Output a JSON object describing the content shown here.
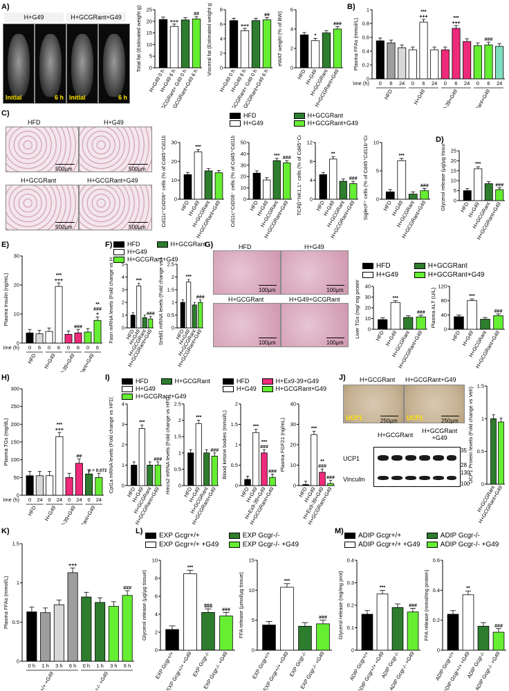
{
  "colors": {
    "black": "#000000",
    "white": "#ffffff",
    "dkgreen": "#2e7d2e",
    "ltgreen": "#66ee33",
    "pink": "#ee2a7b",
    "grey1": "#9e9e9e",
    "grey2": "#d8d8d8",
    "teal": "#7ee0c0"
  },
  "panel_labels": {
    "A": "A)",
    "B": "B)",
    "C": "C)",
    "D": "D)",
    "E": "E)",
    "F": "F)",
    "G": "G)",
    "H": "H)",
    "I": "I)",
    "J": "J)",
    "K": "K)",
    "L": "L)",
    "M": "M)"
  },
  "images": {
    "A": {
      "h1": "H+G49",
      "h2": "H+GCGRant+G49",
      "t1": "Initial",
      "t2": "6 h",
      "t3": "Initial",
      "t4": "6 h"
    },
    "C": {
      "c1": "HFD",
      "c2": "H+G49",
      "c3": "H+GCGRant",
      "c4": "H+GCGRant+G49",
      "scale": "500µm"
    },
    "G": {
      "c1": "HFD",
      "c2": "H+G49",
      "c3": "H+GCGRant",
      "c4": "H+G49+GCGRant",
      "scale": "100µm"
    },
    "J": {
      "c1": "H+GCGRant",
      "c2": "H+GCGRant+G49",
      "ucp": "UCP1",
      "scale": "250µm",
      "blot_g1": "H+GCGRant",
      "blot_g2": "H+GCGRant\n+G49",
      "ucp1": "UCP1",
      "vinculin": "Vinculin",
      "mw": [
        "35",
        "28",
        "130",
        "100"
      ]
    }
  },
  "legends": {
    "C": [
      "HFD",
      "H+G49",
      "H+GCGRant",
      "H+GCGRant+G49"
    ],
    "F": [
      "HFD",
      "H+G49",
      "H+GCGRant",
      "H+GCGRant+G49"
    ],
    "G": [
      "HFD",
      "H+G49",
      "H+GCGRant",
      "H+GCGRant+G49"
    ],
    "H": [
      "HFD",
      "H+G49",
      "H+GCGRant",
      "H+GCGRant+G49"
    ],
    "I": [
      "HFD",
      "H+G49",
      "H+Ex9-39+G49",
      "H+GCGRant+G49"
    ],
    "L": [
      "EXP Gcgr+/+",
      "EXP Gcgr+/+ +G49",
      "EXP Gcgr-/-",
      "EXP Gcgr-/- +G49"
    ],
    "M": [
      "ADIP Gcgr+/+",
      "ADIP Gcgr+/+ +G49",
      "ADIP Gcgr-/-",
      "ADIP Gcgr-/- +G49"
    ]
  },
  "chart_data": [
    {
      "id": "A1",
      "type": "bar",
      "ylabel": "Total fat (Estimated weight g)",
      "ylim": [
        0,
        25
      ],
      "ticks": [
        0,
        5,
        10,
        15,
        20,
        25
      ],
      "categories": [
        "H+G49 0 h",
        "H+G49 6 h",
        "H+GCGRant+ G49 0 h",
        "H+GCGRant+G49 6 h"
      ],
      "values": [
        20.8,
        17.8,
        20.6,
        21.0
      ],
      "colors": [
        "black",
        "white",
        "dkgreen",
        "ltgreen"
      ],
      "sig": [
        "",
        "+++",
        "",
        "##"
      ]
    },
    {
      "id": "A2",
      "type": "bar",
      "ylabel": "Visceral fat (Estimated weight g)",
      "ylim": [
        0,
        8
      ],
      "ticks": [
        0,
        2,
        4,
        6,
        8
      ],
      "categories": [
        "H+G49 0 h",
        "H+G49 6 h",
        "H+GCGRant+ G49 0 h",
        "H+GCGRant+G49 6 h"
      ],
      "values": [
        6.5,
        5.1,
        6.5,
        6.6
      ],
      "colors": [
        "black",
        "white",
        "dkgreen",
        "ltgreen"
      ],
      "sig": [
        "",
        "+++",
        "",
        "##"
      ]
    },
    {
      "id": "A3",
      "type": "bar",
      "ylabel": "eWAT weight (% of BW)",
      "ylim": [
        0,
        6
      ],
      "ticks": [
        0,
        2,
        4,
        6
      ],
      "categories": [
        "HFD",
        "H+G49",
        "H+GCGRant",
        "H+GCGRant+G49"
      ],
      "values": [
        3.4,
        2.8,
        3.6,
        4.0
      ],
      "colors": [
        "black",
        "white",
        "dkgreen",
        "ltgreen"
      ],
      "sig": [
        "",
        "*",
        "",
        "###"
      ]
    },
    {
      "id": "B",
      "type": "bar",
      "ylabel": "Plasma FFAs (mmol/L)",
      "ylim": [
        0,
        1.0
      ],
      "ticks": [
        0.0,
        0.2,
        0.4,
        0.6,
        0.8,
        1.0
      ],
      "categories": [
        "0",
        "6",
        "24",
        "0",
        "6",
        "24",
        "0",
        "6",
        "24",
        "0",
        "6",
        "24"
      ],
      "groups": [
        "HFD",
        "H+G49",
        "H+Ex9-39+G49",
        "H+GCGRant+G49"
      ],
      "xlabel": "Time (h)",
      "values": [
        0.55,
        0.52,
        0.45,
        0.42,
        0.82,
        0.42,
        0.42,
        0.73,
        0.54,
        0.48,
        0.49,
        0.47
      ],
      "colors": [
        "black",
        "grey1",
        "grey2",
        "white",
        "white",
        "white",
        "pink",
        "pink",
        "pink",
        "ltgreen",
        "ltgreen",
        "teal"
      ],
      "sig": [
        "",
        "",
        "",
        "",
        "***\n+++",
        "",
        "",
        "***\n+++",
        "",
        "",
        "###",
        ""
      ]
    },
    {
      "id": "C1",
      "type": "bar",
      "ylabel": "Cd11c⁺Cd206⁺ cells (% of Cd45⁺Cd11b⁺F4/80⁺)",
      "ylim": [
        0,
        30
      ],
      "ticks": [
        0,
        10,
        20,
        30
      ],
      "categories": [
        "HFD",
        "H+G49",
        "H+GCGRant",
        "H+GCGRant+G49"
      ],
      "values": [
        13,
        25,
        15,
        14
      ],
      "colors": [
        "black",
        "white",
        "dkgreen",
        "ltgreen"
      ],
      "sig": [
        "",
        "***",
        "",
        ""
      ]
    },
    {
      "id": "C2",
      "type": "bar",
      "ylabel": "Cd11c⁺Cd206⁻ cells (% of Cd45⁺Cd11b⁺F4/80⁺)",
      "ylim": [
        0,
        50
      ],
      "ticks": [
        0,
        10,
        20,
        30,
        40,
        50
      ],
      "categories": [
        "HFD",
        "H+G49",
        "H+GCGRant",
        "H+GCGRant+G49"
      ],
      "values": [
        23,
        17,
        34,
        32
      ],
      "colors": [
        "black",
        "white",
        "dkgreen",
        "ltgreen"
      ],
      "sig": [
        "",
        "",
        "***",
        "###"
      ]
    },
    {
      "id": "C3",
      "type": "bar",
      "ylabel": "TCRβ⁺NK1.1⁺ cells (% of Cd45⁺Cd3⁺)",
      "ylim": [
        0,
        12
      ],
      "ticks": [
        0,
        4,
        8,
        12
      ],
      "categories": [
        "HFD",
        "H+G49",
        "H+GCGRant",
        "H+GCGRant+G49"
      ],
      "values": [
        5.2,
        8.5,
        3.8,
        3.3
      ],
      "colors": [
        "black",
        "white",
        "dkgreen",
        "ltgreen"
      ],
      "sig": [
        "",
        "**",
        "",
        "###"
      ]
    },
    {
      "id": "C4",
      "type": "bar",
      "ylabel": "SiglecF⁺ cells (% of Cd45⁺Cd11b⁺Cd11c⁻)",
      "ylim": [
        0,
        10
      ],
      "ticks": [
        0,
        5,
        10
      ],
      "categories": [
        "HFD",
        "H+G49",
        "H+GCGRant",
        "H+GCGRant+G49"
      ],
      "values": [
        1.3,
        6.8,
        0.9,
        1.5
      ],
      "colors": [
        "black",
        "white",
        "dkgreen",
        "ltgreen"
      ],
      "sig": [
        "",
        "***",
        "",
        "###"
      ]
    },
    {
      "id": "D",
      "type": "bar",
      "ylabel": "Glycerol release (µg/µg tissue)",
      "ylim": [
        0,
        25
      ],
      "ticks": [
        0,
        5,
        10,
        15,
        20,
        25
      ],
      "categories": [
        "HFD",
        "H+G49",
        "H+GCGRant",
        "H+GCGRant+G49"
      ],
      "values": [
        5,
        16,
        8.5,
        5.5
      ],
      "colors": [
        "black",
        "white",
        "dkgreen",
        "ltgreen"
      ],
      "sig": [
        "",
        "***",
        "",
        "###"
      ]
    },
    {
      "id": "E",
      "type": "bar",
      "ylabel": "Plasma Insulin (ng/mL)",
      "ylim": [
        0,
        30
      ],
      "ticks": [
        0,
        10,
        20,
        30
      ],
      "categories": [
        "0",
        "6",
        "0",
        "6",
        "0",
        "6",
        "0",
        "6"
      ],
      "groups": [
        "HFD",
        "H+G49",
        "H+Ex9-39+G49",
        "H+GCGRant+G49"
      ],
      "xlabel": "Time (h)",
      "values": [
        3.5,
        3.2,
        4.0,
        19.5,
        3.0,
        3.5,
        3.8,
        7.8
      ],
      "colors": [
        "black",
        "grey2",
        "white",
        "white",
        "pink",
        "pink",
        "ltgreen",
        "ltgreen"
      ],
      "sig": [
        "",
        "",
        "",
        "***\n+++",
        "",
        "###",
        "",
        "**\n###\n+"
      ]
    },
    {
      "id": "F1",
      "type": "bar",
      "ylabel": "Fasn mRNA levels (Fold change vs HFD)",
      "ylim": [
        0,
        5
      ],
      "ticks": [
        0,
        1,
        2,
        3,
        4,
        5
      ],
      "categories": [
        "HFD",
        "H+G49",
        "H+GCGRant",
        "H+GCGRant+G49"
      ],
      "values": [
        1.0,
        3.3,
        0.8,
        0.7
      ],
      "colors": [
        "black",
        "white",
        "dkgreen",
        "ltgreen"
      ],
      "sig": [
        "",
        "***",
        "",
        "###"
      ]
    },
    {
      "id": "F2",
      "type": "bar",
      "ylabel": "Srebf1 mRNA levels (Fold change vs HFD)",
      "ylim": [
        0,
        2.5
      ],
      "ticks": [
        0.0,
        0.5,
        1.0,
        1.5,
        2.0,
        2.5
      ],
      "categories": [
        "HFD",
        "H+G49",
        "H+GCGRant",
        "H+GCGRant+G49"
      ],
      "values": [
        1.0,
        1.8,
        0.9,
        1.0
      ],
      "colors": [
        "black",
        "white",
        "dkgreen",
        "ltgreen"
      ],
      "sig": [
        "",
        "***",
        "",
        "###"
      ]
    },
    {
      "id": "G1",
      "type": "bar",
      "ylabel": "Liver TGs (mg/ mg protein)",
      "ylim": [
        0,
        40
      ],
      "ticks": [
        0,
        10,
        20,
        30,
        40
      ],
      "categories": [
        "HFD",
        "H+G49",
        "H+GCGRant",
        "H+GCGRant+G49"
      ],
      "values": [
        9,
        25,
        11,
        11.5
      ],
      "colors": [
        "black",
        "white",
        "dkgreen",
        "ltgreen"
      ],
      "sig": [
        "",
        "***",
        "",
        "###"
      ]
    },
    {
      "id": "G2",
      "type": "bar",
      "ylabel": "Plasma ALT (U/L)",
      "ylim": [
        0,
        120
      ],
      "ticks": [
        0,
        40,
        80,
        120
      ],
      "categories": [
        "HFD",
        "H+G49",
        "H+GCGRant",
        "H+GCGRant+G49"
      ],
      "values": [
        35,
        80,
        28,
        38
      ],
      "colors": [
        "black",
        "white",
        "dkgreen",
        "ltgreen"
      ],
      "sig": [
        "",
        "***",
        "",
        "###"
      ]
    },
    {
      "id": "H",
      "type": "bar",
      "ylabel": "Plasma TGs (mg/dL)",
      "ylim": [
        0,
        300
      ],
      "ticks": [
        0,
        50,
        100,
        150,
        200,
        250,
        300
      ],
      "categories": [
        "0",
        "24",
        "0",
        "24",
        "0",
        "24",
        "0",
        "24"
      ],
      "groups": [
        "HFD",
        "H+G49",
        "H+Ex9-39+G49",
        "H+GCGRant+G49"
      ],
      "xlabel": "Time (h)",
      "values": [
        55,
        55,
        55,
        165,
        50,
        90,
        60,
        50
      ],
      "colors": [
        "black",
        "grey2",
        "white",
        "white",
        "pink",
        "pink",
        "dkgreen",
        "ltgreen"
      ],
      "sig": [
        "",
        "",
        "",
        "***\n+++",
        "",
        "##",
        "",
        "p = 0.0725"
      ]
    },
    {
      "id": "I1",
      "type": "bar",
      "ylabel": "Cpt1a mRNA levels (Fold change vs HFD)",
      "ylim": [
        0,
        4
      ],
      "ticks": [
        0,
        1,
        2,
        3,
        4
      ],
      "categories": [
        "HFD",
        "H+G49",
        "H+GCGRant",
        "H+GCGRant+G49"
      ],
      "values": [
        1.0,
        2.8,
        1.0,
        1.0
      ],
      "colors": [
        "black",
        "white",
        "dkgreen",
        "ltgreen"
      ],
      "sig": [
        "",
        "***",
        "",
        "###"
      ]
    },
    {
      "id": "I2",
      "type": "bar",
      "ylabel": "Hmcs2 mRNA levels (Fold change vs HFD)",
      "ylim": [
        0,
        2.5
      ],
      "ticks": [
        0.0,
        0.5,
        1.0,
        1.5,
        2.0,
        2.5
      ],
      "categories": [
        "HFD",
        "H+G49",
        "H+GCGRant",
        "H+GCGRant+G49"
      ],
      "values": [
        1.0,
        1.9,
        1.0,
        0.9
      ],
      "colors": [
        "black",
        "white",
        "dkgreen",
        "ltgreen"
      ],
      "sig": [
        "",
        "***",
        "",
        "###"
      ]
    },
    {
      "id": "I3",
      "type": "bar",
      "ylabel": "Blood ketone bodies (mmol/L)",
      "ylim": [
        0,
        2.0
      ],
      "ticks": [
        0.0,
        0.5,
        1.0,
        1.5,
        2.0
      ],
      "categories": [
        "HFD",
        "H+G49",
        "H+Ex9-39+G49",
        "H+GCGRant+G49"
      ],
      "values": [
        0.15,
        1.3,
        0.8,
        0.2
      ],
      "colors": [
        "black",
        "white",
        "pink",
        "ltgreen"
      ],
      "sig": [
        "",
        "***",
        "***\n###",
        "###"
      ]
    },
    {
      "id": "I4",
      "type": "bar",
      "ylabel": "Plasma FGF21 (ng/mL)",
      "ylim": [
        0,
        40
      ],
      "ticks": [
        0,
        10,
        20,
        30,
        40
      ],
      "categories": [
        "HFD",
        "H+G49",
        "H+Ex9-39+G49",
        "H+GCGRant+G49"
      ],
      "values": [
        0.5,
        25,
        6.5,
        1.0
      ],
      "colors": [
        "black",
        "white",
        "pink",
        "ltgreen"
      ],
      "sig": [
        "",
        "***",
        "**\n###",
        "###"
      ]
    },
    {
      "id": "J",
      "type": "bar",
      "ylabel": "UCP1 Protein levels (Fold change vs Veh)",
      "ylim": [
        0,
        1.5
      ],
      "ticks": [
        0.0,
        0.5,
        1.0,
        1.5
      ],
      "categories": [
        "H+GCGRant",
        "H+GCGRant+G49"
      ],
      "values": [
        1.0,
        0.95
      ],
      "colors": [
        "dkgreen",
        "ltgreen"
      ],
      "sig": [
        "",
        ""
      ]
    },
    {
      "id": "K",
      "type": "bar",
      "ylabel": "Plasma FFAs (mmol/L)",
      "ylim": [
        0,
        1.5
      ],
      "ticks": [
        0.0,
        0.5,
        1.0,
        1.5
      ],
      "categories": [
        "0 h",
        "1 h",
        "3 h",
        "6 h",
        "0 h",
        "1 h",
        "3 h",
        "6 h"
      ],
      "groups": [
        "Gcgr+/+ +G49",
        "Gcgr-/- +G49"
      ],
      "values": [
        0.63,
        0.62,
        0.72,
        1.13,
        0.82,
        0.75,
        0.7,
        0.84
      ],
      "colors": [
        "black",
        "grey1",
        "grey2",
        "grey1",
        "dkgreen",
        "dkgreen",
        "ltgreen",
        "ltgreen"
      ],
      "sig": [
        "",
        "",
        "",
        "+++",
        "",
        "",
        "",
        "###"
      ]
    },
    {
      "id": "L1",
      "type": "bar",
      "ylabel": "Glycerol release (µg/µg tissue)",
      "ylim": [
        0,
        10
      ],
      "ticks": [
        0,
        2,
        4,
        6,
        8,
        10
      ],
      "categories": [
        "EXP Gcgr+/+",
        "EXP Gcgr+/+ +G49",
        "EXP Gcgr-/-",
        "EXP Gcgr-/- +G49"
      ],
      "values": [
        2.3,
        8.5,
        4.2,
        3.8
      ],
      "colors": [
        "black",
        "white",
        "dkgreen",
        "ltgreen"
      ],
      "sig": [
        "",
        "***",
        "$$$",
        "###"
      ]
    },
    {
      "id": "L2",
      "type": "bar",
      "ylabel": "FFA release (µmol/µg tissue)",
      "ylim": [
        0,
        15
      ],
      "ticks": [
        0,
        5,
        10,
        15
      ],
      "categories": [
        "EXP Gcgr+/+",
        "EXP Gcgr+/+ +G49",
        "EXP Gcgr-/-",
        "EXP Gcgr-/- +G49"
      ],
      "values": [
        4.2,
        10.5,
        4.0,
        4.4
      ],
      "colors": [
        "black",
        "white",
        "dkgreen",
        "ltgreen"
      ],
      "sig": [
        "",
        "***",
        "",
        "###"
      ]
    },
    {
      "id": "M1",
      "type": "bar",
      "ylabel": "Glycerol release (mg/mg prot)",
      "ylim": [
        0,
        0.4
      ],
      "ticks": [
        0.0,
        0.1,
        0.2,
        0.3,
        0.4
      ],
      "categories": [
        "ADIP Gcgr+/+",
        "ADIP Gcgr+/+ +G49",
        "ADIP Gcgr-/-",
        "ADIP Gcgr-/- +G49"
      ],
      "values": [
        0.16,
        0.25,
        0.19,
        0.17
      ],
      "colors": [
        "black",
        "white",
        "dkgreen",
        "ltgreen"
      ],
      "sig": [
        "",
        "***",
        "",
        "###"
      ]
    },
    {
      "id": "M2",
      "type": "bar",
      "ylabel": "FFA release (mmol/mg protein)",
      "ylim": [
        0,
        0.6
      ],
      "ticks": [
        0.0,
        0.2,
        0.4,
        0.6
      ],
      "categories": [
        "ADIP Gcgr+/+",
        "ADIP Gcgr+/+ +G49",
        "ADIP Gcgr-/-",
        "ADIP Gcgr-/- +G49"
      ],
      "values": [
        0.24,
        0.37,
        0.16,
        0.12
      ],
      "colors": [
        "black",
        "white",
        "dkgreen",
        "ltgreen"
      ],
      "sig": [
        "",
        "**",
        "",
        "###"
      ]
    }
  ]
}
